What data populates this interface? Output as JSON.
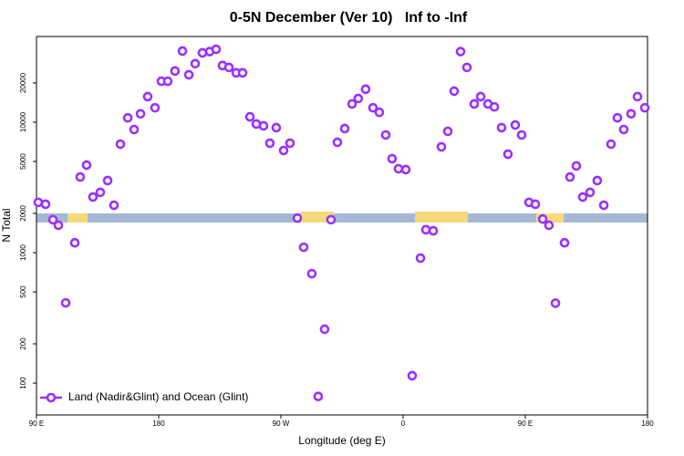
{
  "chart_data": {
    "type": "scatter",
    "title": "0-5N December (Ver 10)   Inf to -Inf",
    "x_label": "Longitude (deg E)",
    "y_label": "N Total",
    "log_y": true,
    "xlim": [
      -270,
      180
    ],
    "ylim": [
      57,
      45400
    ],
    "xticks": [
      {
        "value": -270,
        "label": "90 E"
      },
      {
        "value": -180,
        "label": "180"
      },
      {
        "value": -90,
        "label": "90 W"
      },
      0,
      {
        "value": 90,
        "label": "90 E"
      },
      180
    ],
    "yticks": [
      100,
      200,
      500,
      1000,
      2000,
      5000,
      10000,
      20000
    ],
    "legend_position": "bottom-left",
    "series": [
      {
        "name": "Land (Nadir&Glint) and Ocean (Glint)",
        "color": "#9b30ff",
        "x": [
          -268.7,
          -263.3,
          -257.9,
          -253.9,
          -248.5,
          -241.8,
          -237.8,
          -233.1,
          -228.4,
          -223.0,
          -217.6,
          -212.9,
          -208.2,
          -202.8,
          -198.1,
          -193.4,
          -188.1,
          -182.7,
          -178.0,
          -173.3,
          -168.0,
          -162.5,
          -157.8,
          -153.1,
          -147.8,
          -142.4,
          -137.7,
          -133.0,
          -128.3,
          -122.9,
          -118.2,
          -112.8,
          -108.1,
          -102.8,
          -98.1,
          -93.4,
          -88.0,
          -83.3,
          -77.9,
          -73.2,
          -67.2,
          -62.5,
          -57.8,
          -53.1,
          -48.4,
          -43.0,
          -37.6,
          -33.0,
          -27.6,
          -22.2,
          -17.5,
          -12.8,
          -8.1,
          -3.4,
          2.0,
          6.7,
          12.8,
          16.8,
          22.2,
          28.2,
          32.9,
          37.6,
          42.3,
          47.0,
          52.4,
          57.1,
          62.5,
          67.2,
          72.5,
          77.2,
          82.6,
          87.3,
          92.7,
          97.4,
          102.8,
          107.4,
          112.2,
          118.9,
          122.9,
          127.6,
          132.3,
          137.7,
          143.0,
          147.8,
          153.1,
          157.8,
          162.5,
          167.9,
          172.6,
          178.0
        ],
        "values": [
          2430,
          2350,
          1790,
          1620,
          412,
          1190,
          3800,
          4690,
          2670,
          2900,
          3570,
          2310,
          6790,
          10800,
          8790,
          11600,
          15700,
          12900,
          20600,
          20600,
          24700,
          35100,
          23100,
          28100,
          34000,
          34800,
          36200,
          27200,
          26300,
          23900,
          23900,
          11000,
          9690,
          9380,
          6900,
          9080,
          6070,
          6900,
          1840,
          1100,
          690,
          79,
          259,
          1790,
          7010,
          8940,
          13800,
          15200,
          17900,
          12900,
          11900,
          7980,
          5250,
          4400,
          4330,
          114,
          908,
          1500,
          1470,
          6470,
          8510,
          17300,
          34800,
          26300,
          13800,
          15700,
          13800,
          13100,
          9080,
          5690,
          9520,
          7980,
          2430,
          2350,
          1810,
          1620,
          410,
          1190,
          3800,
          4620,
          2670,
          2900,
          3570,
          2310,
          6790,
          10800,
          8790,
          11600,
          15700,
          12900
        ]
      }
    ]
  }
}
